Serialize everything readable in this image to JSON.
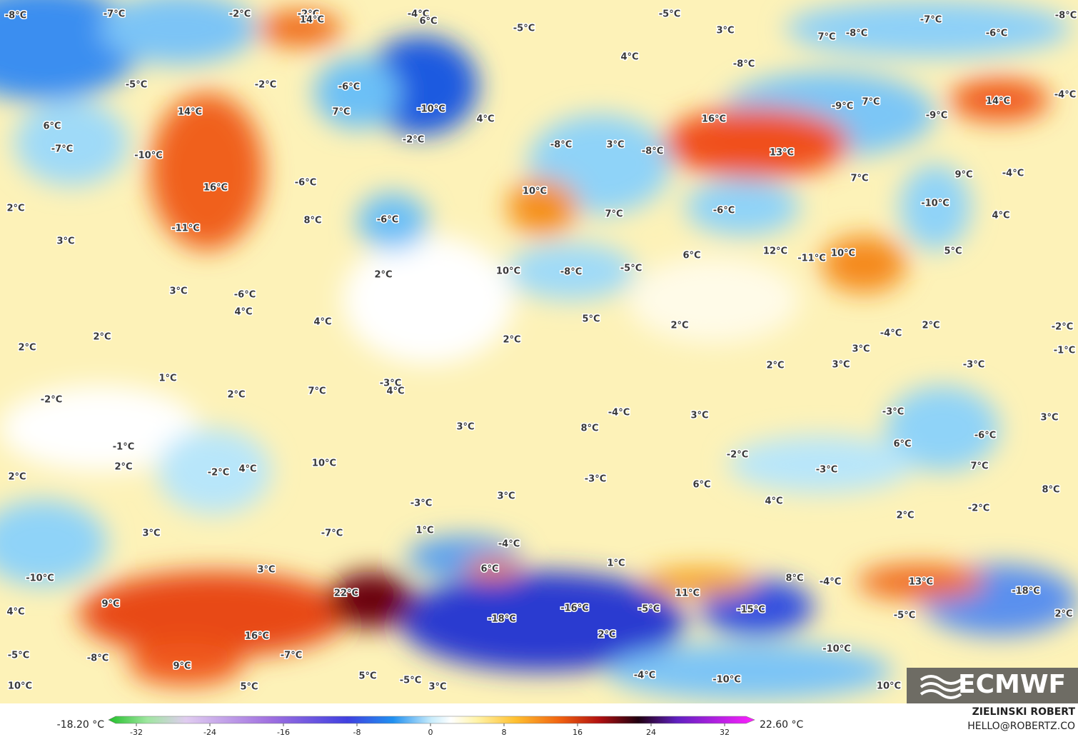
{
  "map": {
    "labels": [
      "-8°C",
      "-7°C",
      "-2°C",
      "-2°C",
      "14°C",
      "-4°C",
      "6°C",
      "-5°C",
      "-7°C",
      "-8°C",
      "3°C",
      "-5°C",
      "7°C",
      "-8°C",
      "-6°C",
      "4°C",
      "-8°C",
      "-5°C",
      "-2°C",
      "-6°C",
      "7°C",
      "-10°C",
      "4°C",
      "14°C",
      "6°C",
      "-7°C",
      "-10°C",
      "-2°C",
      "16°C",
      "-9°C",
      "7°C",
      "-9°C",
      "14°C",
      "-4°C",
      "-8°C",
      "3°C",
      "-8°C",
      "13°C",
      "-6°C",
      "16°C",
      "10°C",
      "7°C",
      "9°C",
      "-4°C",
      "2°C",
      "-6°C",
      "8°C",
      "-6°C",
      "7°C",
      "-10°C",
      "4°C",
      "-11°C",
      "3°C",
      "12°C",
      "-11°C",
      "10°C",
      "5°C",
      "6°C",
      "2°C",
      "10°C",
      "-8°C",
      "-5°C",
      "3°C",
      "-6°C",
      "4°C",
      "4°C",
      "5°C",
      "2°C",
      "2°C",
      "2°C",
      "-4°C",
      "2°C",
      "-2°C",
      "2°C",
      "-1°C",
      "3°C",
      "2°C",
      "3°C",
      "-3°C",
      "1°C",
      "-3°C",
      "4°C",
      "7°C",
      "2°C",
      "-2°C",
      "-4°C",
      "3°C",
      "-3°C",
      "3°C",
      "3°C",
      "8°C",
      "-1°C",
      "6°C",
      "-6°C",
      "-2°C",
      "2°C",
      "-2°C",
      "4°C",
      "10°C",
      "2°C",
      "-3°C",
      "7°C",
      "-3°C",
      "6°C",
      "8°C",
      "3°C",
      "-3°C",
      "4°C",
      "2°C",
      "-2°C",
      "-7°C",
      "1°C",
      "3°C",
      "-4°C",
      "1°C",
      "6°C",
      "3°C",
      "-10°C",
      "8°C",
      "-4°C",
      "13°C",
      "-18°C",
      "22°C",
      "9°C",
      "11°C",
      "-16°C",
      "-5°C",
      "-15°C",
      "-18°C",
      "-5°C",
      "2°C",
      "4°C",
      "16°C",
      "2°C",
      "-5°C",
      "-8°C",
      "-7°C",
      "-10°C",
      "9°C",
      "5°C",
      "-5°C",
      "-4°C",
      "-10°C",
      "3°C",
      "10°C",
      "5°C",
      "10°C"
    ]
  },
  "legend": {
    "min_label": "-18.20 °C",
    "max_label": "22.60 °C",
    "ticks": [
      -32,
      -24,
      -16,
      -8,
      0,
      8,
      16,
      24,
      32
    ]
  },
  "credit": {
    "name": "ZIELINSKI ROBERT",
    "email": "HELLO@ROBERTZ.CO"
  },
  "logo": "ECMWF"
}
